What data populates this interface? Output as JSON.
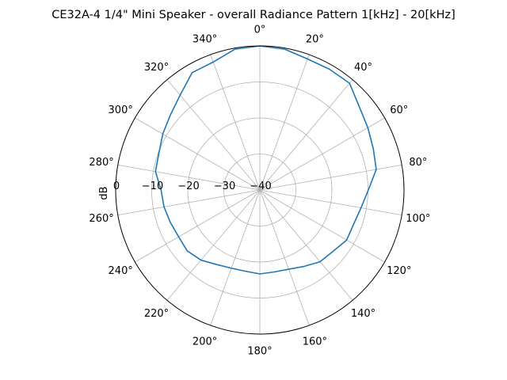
{
  "chart_data": {
    "type": "polar-line",
    "title": "CE32A-4 1/4\" Mini Speaker - overall Radiance Pattern 1[kHz] - 20[kHz]",
    "ylabel": "dB",
    "theta_zero": "top",
    "theta_direction": "clockwise",
    "theta_tick_labels": [
      "0°",
      "20°",
      "40°",
      "60°",
      "80°",
      "100°",
      "120°",
      "140°",
      "160°",
      "180°",
      "200°",
      "220°",
      "240°",
      "260°",
      "280°",
      "300°",
      "320°",
      "340°"
    ],
    "r_tick_labels": [
      "0",
      "−10",
      "−20",
      "−30",
      "−40"
    ],
    "r_ticks": [
      0,
      -10,
      -20,
      -30,
      -40
    ],
    "r_range": [
      -40,
      0
    ],
    "grid": true,
    "series": [
      {
        "color": "#1f77b4",
        "theta": [
          0,
          10,
          20,
          30,
          40,
          50,
          60,
          70,
          80,
          90,
          100,
          110,
          120,
          130,
          140,
          150,
          160,
          170,
          180,
          190,
          200,
          210,
          220,
          230,
          240,
          250,
          260,
          270,
          280,
          290,
          300,
          310,
          320,
          330,
          340,
          350,
          360
        ],
        "r": [
          0,
          -0.3,
          -1.3,
          -1.3,
          -1.3,
          -4,
          -5.4,
          -6.5,
          -7.2,
          -9.9,
          -11.5,
          -12.3,
          -12.2,
          -13.5,
          -14,
          -15.5,
          -16.6,
          -16.9,
          -16.7,
          -17.1,
          -16.9,
          -16.1,
          -14.6,
          -13.7,
          -14,
          -13.6,
          -13,
          -12.6,
          -10.6,
          -10.2,
          -8.9,
          -7.6,
          -5.6,
          -2.4,
          -2.2,
          -0.3,
          0
        ]
      }
    ]
  }
}
